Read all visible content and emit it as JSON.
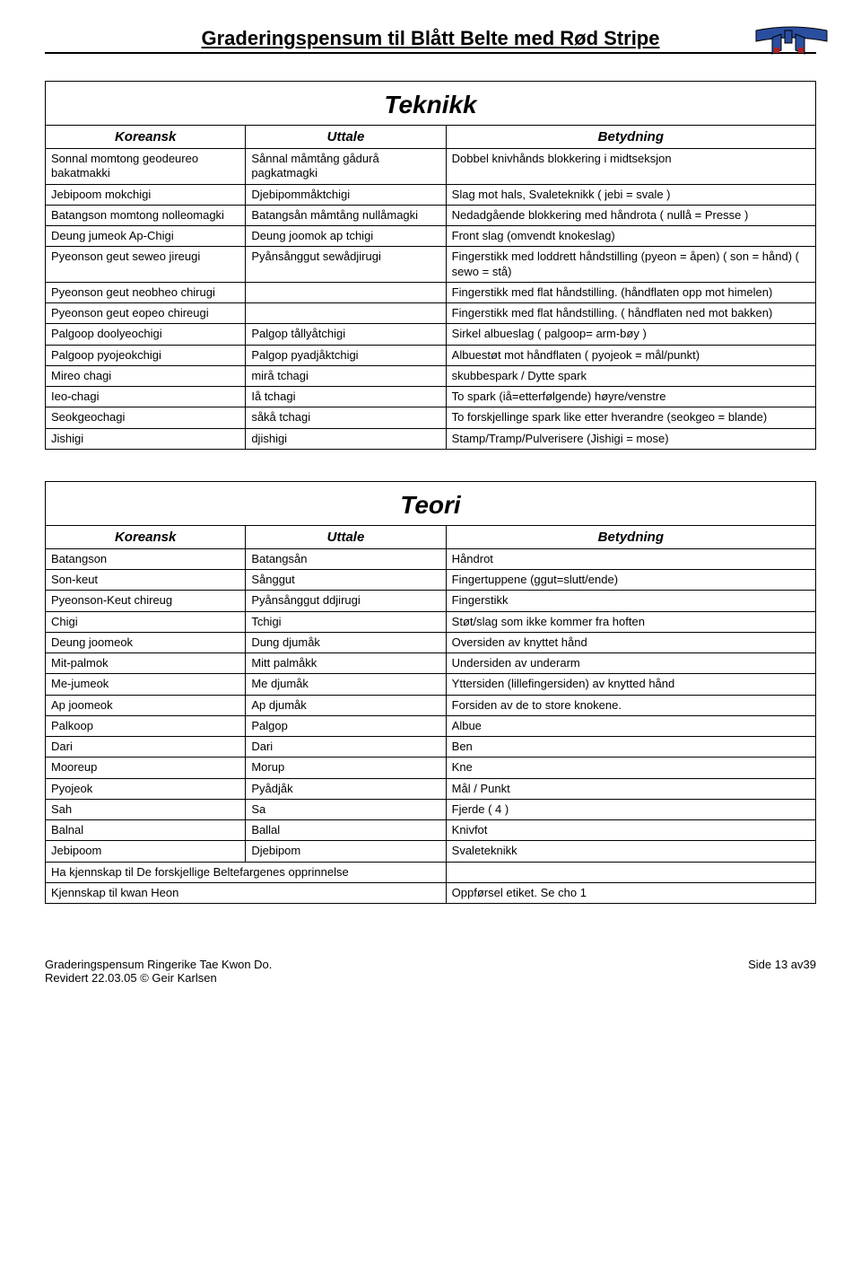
{
  "page": {
    "title": "Graderingspensum til Blått Belte med Rød Stripe",
    "belt_colors": {
      "main": "#2a4ea0",
      "stripe": "#b02020",
      "outline": "#000000"
    }
  },
  "teknikk": {
    "title": "Teknikk",
    "headers": [
      "Koreansk",
      "Uttale",
      "Betydning"
    ],
    "rows": [
      [
        "Sonnal momtong geodeureo bakatmakki",
        "Sånnal måmtång gådurå pagkatmagki",
        "Dobbel knivhånds blokkering i midtseksjon"
      ],
      [
        "Jebipoom mokchigi",
        "Djebipommåktchigi",
        "Slag mot hals, Svaleteknikk ( jebi = svale )"
      ],
      [
        "Batangson momtong nolleomagki",
        "Batangsån måmtång nullåmagki",
        "Nedadgående blokkering med håndrota ( nullå = Presse )"
      ],
      [
        "Deung jumeok Ap-Chigi",
        "Deung joomok ap tchigi",
        "Front slag (omvendt knokeslag)"
      ],
      [
        "Pyeonson geut seweo jireugi",
        "Pyånsånggut sewådjirugi",
        "Fingerstikk med loddrett håndstilling (pyeon = åpen) ( son = hånd) (  sewo = stå)"
      ],
      [
        "Pyeonson geut neobheo chirugi",
        "",
        "Fingerstikk med flat håndstilling. (håndflaten opp mot himelen)"
      ],
      [
        "Pyeonson geut eopeo chireugi",
        "",
        "Fingerstikk  med flat håndstilling. ( håndflaten ned mot bakken)"
      ],
      [
        "Palgoop doolyeochigi",
        "Palgop tållyåtchigi",
        "Sirkel albueslag ( palgoop= arm-bøy )"
      ],
      [
        "Palgoop pyojeokchigi",
        "Palgop pyadjåktchigi",
        "Albuestøt mot håndflaten ( pyojeok = mål/punkt)"
      ],
      [
        "Mireo chagi",
        "mirå tchagi",
        "skubbespark / Dytte spark"
      ],
      [
        "Ieo-chagi",
        "Iå tchagi",
        "To spark (iå=etterfølgende) høyre/venstre"
      ],
      [
        "Seokgeochagi",
        "såkå tchagi",
        "To forskjellinge spark like etter hverandre (seokgeo = blande)"
      ],
      [
        "Jishigi",
        "djishigi",
        "Stamp/Tramp/Pulverisere (Jishigi = mose)"
      ]
    ]
  },
  "teori": {
    "title": "Teori",
    "headers": [
      "Koreansk",
      "Uttale",
      "Betydning"
    ],
    "rows": [
      [
        "Batangson",
        "Batangsån",
        "Håndrot"
      ],
      [
        "Son-keut",
        "Sånggut",
        "Fingertuppene (ggut=slutt/ende)"
      ],
      [
        "Pyeonson-Keut chireug",
        "Pyånsånggut ddjirugi",
        "Fingerstikk"
      ],
      [
        "Chigi",
        "Tchigi",
        "Støt/slag som ikke kommer fra hoften"
      ],
      [
        "Deung joomeok",
        "Dung djumåk",
        "Oversiden av knyttet hånd"
      ],
      [
        "Mit-palmok",
        "Mitt palmåkk",
        "Undersiden av underarm"
      ],
      [
        "Me-jumeok",
        "Me djumåk",
        "Yttersiden (lillefingersiden) av knytted hånd"
      ],
      [
        "Ap joomeok",
        "Ap djumåk",
        "Forsiden av de to store knokene."
      ],
      [
        "Palkoop",
        "Palgop",
        "Albue"
      ],
      [
        "Dari",
        "Dari",
        "Ben"
      ],
      [
        "Mooreup",
        "Morup",
        "Kne"
      ],
      [
        "Pyojeok",
        "Pyådjåk",
        "Mål / Punkt"
      ],
      [
        "Sah",
        "Sa",
        "Fjerde ( 4 )"
      ],
      [
        "Balnal",
        "Ballal",
        "Knivfot"
      ],
      [
        "Jebipoom",
        "Djebipom",
        "Svaleteknikk"
      ]
    ],
    "extras": [
      {
        "left": "Ha kjennskap til De forskjellige Beltefargenes opprinnelse",
        "right": ""
      },
      {
        "left": "Kjennskap til kwan Heon",
        "right": "Oppførsel etiket. Se cho 1"
      }
    ]
  },
  "footer": {
    "left_line1": "Graderingspensum Ringerike Tae Kwon Do.",
    "left_line2": "Revidert 22.03.05 © Geir Karlsen",
    "right": "Side 13 av39"
  }
}
